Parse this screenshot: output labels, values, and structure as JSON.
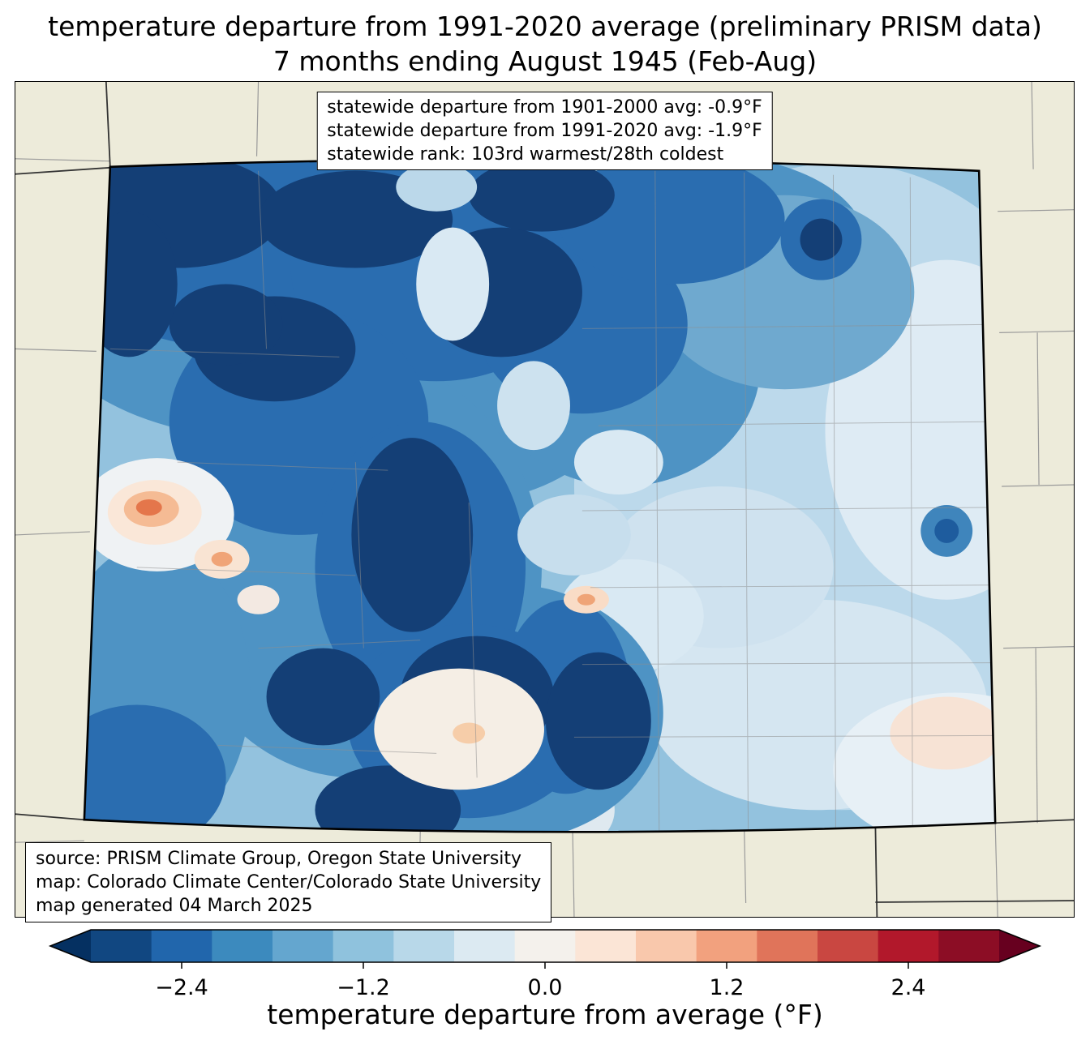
{
  "title": {
    "line1": "temperature departure from 1991-2020 average (preliminary PRISM data)",
    "line2": "7 months ending August 1945 (Feb-Aug)"
  },
  "stats_box": {
    "line1": "statewide departure from 1901-2000 avg: -0.9°F",
    "line2": "statewide departure from 1991-2020 avg: -1.9°F",
    "line3": "statewide rank: 103rd warmest/28th coldest"
  },
  "source_box": {
    "line1": "source: PRISM Climate Group, Oregon State University",
    "line2": "map: Colorado Climate Center/Colorado State University",
    "line3": "map generated 04 March 2025"
  },
  "map_colors": {
    "land_background": "#EDEBDA",
    "state_border": "#000000",
    "county_line": "#8F8F8F",
    "deep_cold": "#143F76",
    "cold": "#2A6DB0",
    "mid_cold": "#4E93C4",
    "light_cold": "#93C2DE",
    "pale_cold": "#DEEBF4",
    "neutral": "#F5EEE5",
    "warm_spot": "#E4764B"
  },
  "colorbar": {
    "label": "temperature departure from average (°F)",
    "min": -3.0,
    "max": 3.0,
    "arrow_left_color": "#053061",
    "arrow_right_color": "#67001F",
    "segment_colors": [
      "#114781",
      "#2166AC",
      "#3C8ABE",
      "#64A6CF",
      "#8FC2DD",
      "#B8D8E9",
      "#DCEAF2",
      "#F4F1EC",
      "#FBE5D6",
      "#F9C8AC",
      "#F2A17E",
      "#E0745A",
      "#C94741",
      "#B2182B",
      "#8C0D25"
    ],
    "ticks": [
      {
        "value": -2.4,
        "label": "−2.4"
      },
      {
        "value": -1.2,
        "label": "−1.2"
      },
      {
        "value": 0.0,
        "label": "0.0"
      },
      {
        "value": 1.2,
        "label": "1.2"
      },
      {
        "value": 2.4,
        "label": "2.4"
      }
    ]
  }
}
